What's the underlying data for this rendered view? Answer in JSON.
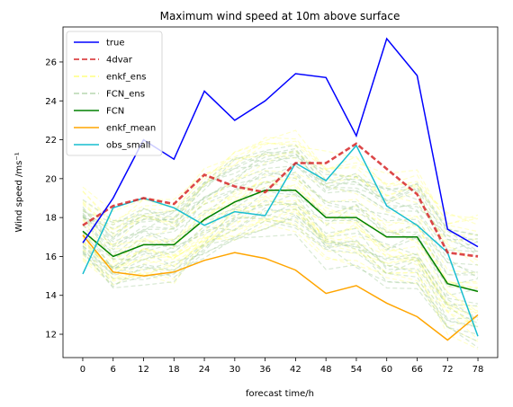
{
  "chart_data": {
    "type": "line",
    "title": "Maximum wind speed at 10m above surface",
    "xlabel": "forecast time/h",
    "ylabel": "Wind speed /ms⁻¹",
    "x": [
      0,
      6,
      12,
      18,
      24,
      30,
      36,
      42,
      48,
      54,
      60,
      66,
      72,
      78
    ],
    "xticks": [
      "0",
      "6",
      "12",
      "18",
      "24",
      "30",
      "36",
      "42",
      "48",
      "54",
      "60",
      "66",
      "72",
      "78"
    ],
    "yticks": [
      "12",
      "14",
      "16",
      "18",
      "20",
      "22",
      "24",
      "26"
    ],
    "xlim": [
      -3.9,
      81.9
    ],
    "ylim": [
      10.8,
      27.8
    ],
    "legend_position": "top-left",
    "series": [
      {
        "name": "true",
        "color": "#0000ff",
        "style": "solid",
        "values": [
          16.7,
          19.0,
          22.0,
          21.0,
          24.5,
          23.0,
          24.0,
          25.4,
          25.2,
          22.2,
          27.2,
          25.3,
          17.4,
          16.5
        ]
      },
      {
        "name": "4dvar",
        "color": "#d62728",
        "style": "dashed",
        "values": [
          17.6,
          18.6,
          19.0,
          18.7,
          20.2,
          19.6,
          19.3,
          20.8,
          20.8,
          21.8,
          20.5,
          19.2,
          16.2,
          16.0
        ]
      },
      {
        "name": "enkf_ens",
        "color": "#ffff66",
        "style": "dashed",
        "ensemble": true
      },
      {
        "name": "FCN_ens",
        "color": "#a9cfa0",
        "style": "dashed",
        "ensemble": true
      },
      {
        "name": "FCN",
        "color": "#008000",
        "style": "solid",
        "values": [
          17.3,
          16.0,
          16.6,
          16.6,
          17.9,
          18.8,
          19.4,
          19.4,
          18.0,
          18.0,
          17.0,
          17.0,
          14.6,
          14.2
        ]
      },
      {
        "name": "enkf_mean",
        "color": "#ffa500",
        "style": "solid",
        "values": [
          17.1,
          15.2,
          15.0,
          15.2,
          15.8,
          16.2,
          15.9,
          15.3,
          14.1,
          14.5,
          13.6,
          12.9,
          11.7,
          13.0
        ]
      },
      {
        "name": "obs_small",
        "color": "#17becf",
        "style": "solid",
        "values": [
          15.1,
          18.5,
          19.0,
          18.5,
          17.6,
          18.3,
          18.1,
          20.8,
          19.9,
          21.7,
          18.6,
          17.6,
          16.2,
          11.9
        ]
      }
    ]
  }
}
